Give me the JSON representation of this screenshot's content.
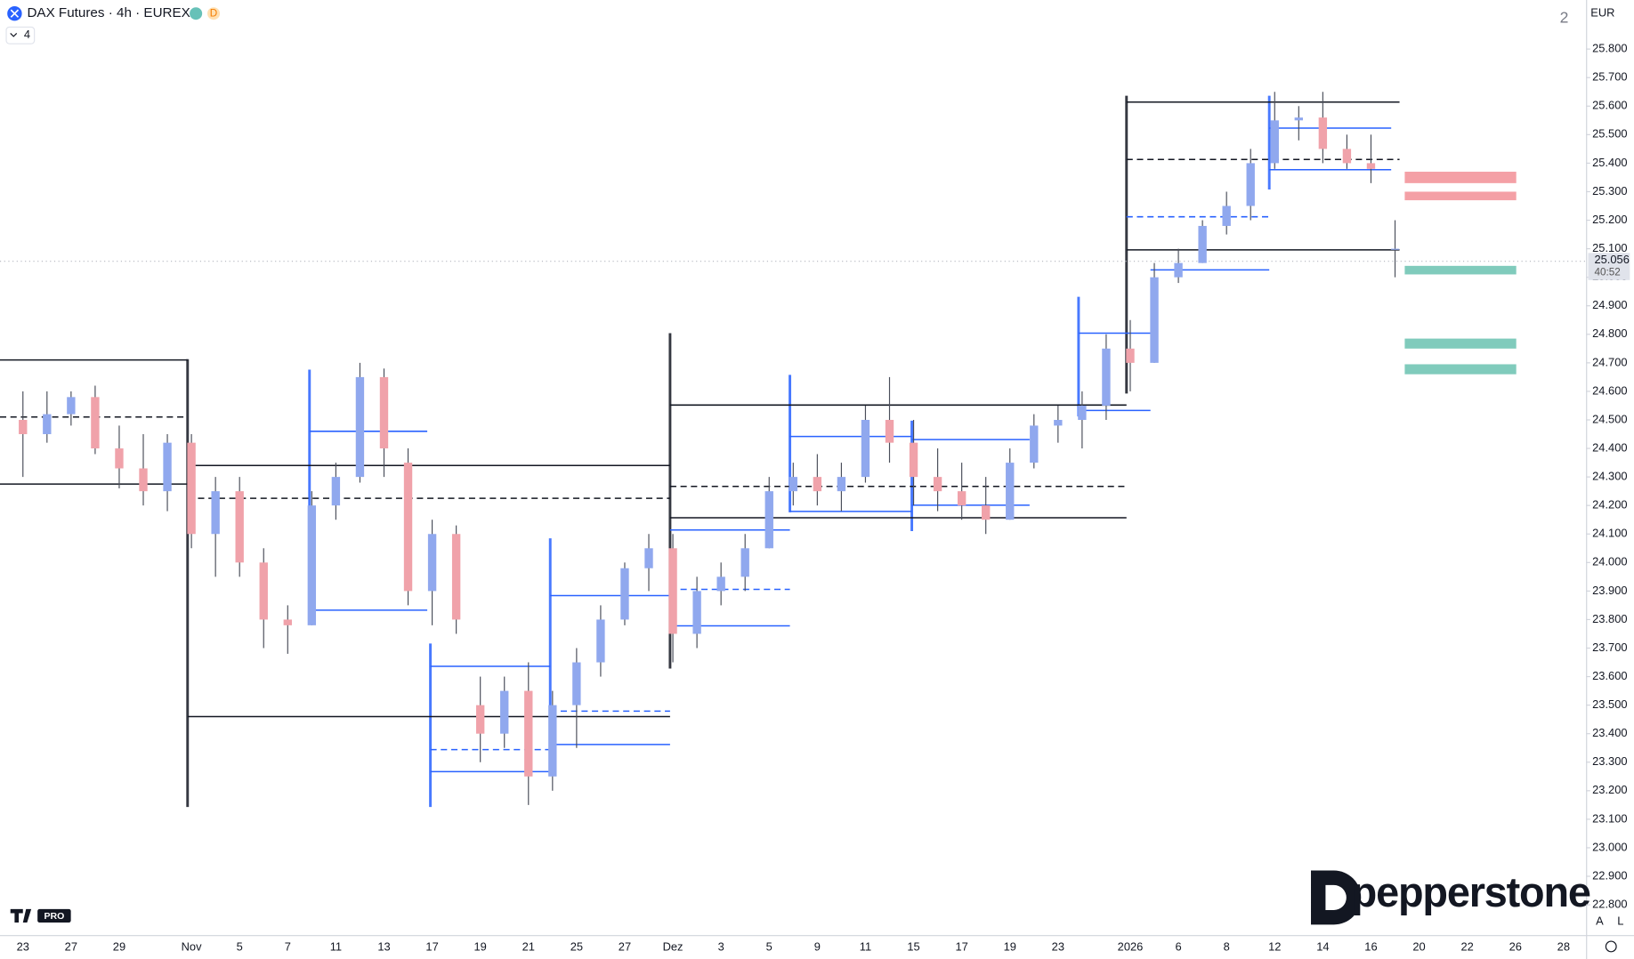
{
  "chart_data": {
    "type": "candlestick",
    "title": "DAX Futures · 4h · EUREX",
    "badge": "D",
    "indicator_count": "4",
    "layout_count": "2",
    "currency": "EUR",
    "scale_buttons": [
      "A",
      "L"
    ],
    "watermark": "PRO",
    "brand": "pepperstone",
    "categories": [
      "23",
      null,
      "27",
      null,
      "29",
      null,
      null,
      "Nov",
      null,
      "5",
      null,
      "7",
      null,
      "11",
      null,
      "13",
      null,
      "17",
      null,
      "19",
      null,
      "21",
      null,
      "25",
      null,
      "27",
      null,
      "Dez",
      null,
      "3",
      null,
      "5",
      null,
      "9",
      null,
      "11",
      null,
      "15",
      null,
      "17",
      null,
      "19",
      null,
      "23",
      null,
      null,
      "2026",
      null,
      "6",
      null,
      "8",
      null,
      "12",
      null,
      "14",
      null,
      "16",
      null,
      "20",
      null,
      "22",
      null,
      "26",
      null,
      "28"
    ],
    "open": [
      24500,
      24450,
      24520,
      24580,
      24400,
      24330,
      24250,
      24420,
      24100,
      24250,
      24000,
      23800,
      23780,
      24200,
      24300,
      24650,
      24350,
      23900,
      24100,
      23500,
      23400,
      23550,
      23250,
      23500,
      23650,
      23800,
      23980,
      24050,
      23750,
      23900,
      23950,
      24050,
      24250,
      24300,
      24250,
      24300,
      24500,
      24420,
      24300,
      24250,
      24200,
      24150,
      24350,
      24480,
      24500,
      24550,
      24750,
      24700,
      25000,
      25050,
      25180,
      25250,
      25400,
      25550,
      25560,
      25450,
      25400,
      25100,
      null,
      null,
      null,
      null,
      null,
      null,
      null
    ],
    "high": [
      24600,
      24600,
      24600,
      24620,
      24480,
      24450,
      24450,
      24450,
      24300,
      24300,
      24050,
      23850,
      24250,
      24350,
      24700,
      24680,
      24400,
      24150,
      24130,
      23600,
      23600,
      23650,
      23550,
      23700,
      23850,
      24000,
      24100,
      24100,
      23950,
      24000,
      24100,
      24300,
      24350,
      24380,
      24350,
      24550,
      24650,
      24500,
      24400,
      24350,
      24300,
      24400,
      24520,
      24550,
      24600,
      24800,
      24850,
      25050,
      25100,
      25200,
      25300,
      25450,
      25650,
      25600,
      25650,
      25500,
      25500,
      25200,
      null,
      null,
      null,
      null,
      null,
      null,
      null
    ],
    "low": [
      24300,
      24420,
      24480,
      24380,
      24260,
      24200,
      24180,
      24050,
      23950,
      23950,
      23700,
      23680,
      23780,
      24150,
      24280,
      24300,
      23850,
      23780,
      23750,
      23300,
      23350,
      23150,
      23200,
      23350,
      23600,
      23780,
      23900,
      23650,
      23700,
      23850,
      23900,
      24050,
      24200,
      24200,
      24180,
      24280,
      24350,
      24200,
      24180,
      24150,
      24100,
      24150,
      24330,
      24420,
      24400,
      24500,
      24600,
      24700,
      24980,
      25050,
      25150,
      25200,
      25380,
      25480,
      25400,
      25380,
      25330,
      25000,
      null,
      null,
      null,
      null,
      null,
      null,
      null
    ],
    "close": [
      24450,
      24520,
      24580,
      24400,
      24330,
      24250,
      24420,
      24100,
      24250,
      24000,
      23800,
      23780,
      24200,
      24300,
      24650,
      24400,
      23900,
      24100,
      23800,
      23400,
      23550,
      23250,
      23500,
      23650,
      23800,
      23980,
      24050,
      23750,
      23900,
      23950,
      24050,
      24250,
      24300,
      24250,
      24300,
      24500,
      24420,
      24300,
      24250,
      24200,
      24150,
      24350,
      24480,
      24500,
      24550,
      24750,
      24700,
      25000,
      25050,
      25180,
      25250,
      25400,
      25550,
      25560,
      25450,
      25400,
      25380,
      25100,
      null,
      null,
      null,
      null,
      null,
      null,
      null
    ],
    "up_color": "#90a8ee",
    "down_color": "#f0a2aa",
    "wick_color": "#4a4e5a",
    "last_price": {
      "value": 25056,
      "label": "25.056"
    },
    "countdown": "40:52",
    "ylim": [
      22694,
      25972
    ],
    "yticks": [
      {
        "value": 22800,
        "label": "22.800"
      },
      {
        "value": 22900,
        "label": "22.900"
      },
      {
        "value": 23000,
        "label": "23.000"
      },
      {
        "value": 23100,
        "label": "23.100"
      },
      {
        "value": 23200,
        "label": "23.200"
      },
      {
        "value": 23300,
        "label": "23.300"
      },
      {
        "value": 23400,
        "label": "23.400"
      },
      {
        "value": 23500,
        "label": "23.500"
      },
      {
        "value": 23600,
        "label": "23.600"
      },
      {
        "value": 23700,
        "label": "23.700"
      },
      {
        "value": 23800,
        "label": "23.800"
      },
      {
        "value": 23900,
        "label": "23.900"
      },
      {
        "value": 24000,
        "label": "24.000"
      },
      {
        "value": 24100,
        "label": "24.100"
      },
      {
        "value": 24200,
        "label": "24.200"
      },
      {
        "value": 24300,
        "label": "24.300"
      },
      {
        "value": 24400,
        "label": "24.400"
      },
      {
        "value": 24500,
        "label": "24.500"
      },
      {
        "value": 24600,
        "label": "24.600"
      },
      {
        "value": 24700,
        "label": "24.700"
      },
      {
        "value": 24800,
        "label": "24.800"
      },
      {
        "value": 24900,
        "label": "24.900"
      },
      {
        "value": 25000,
        "label": "25.000"
      },
      {
        "value": 25100,
        "label": "25.100"
      },
      {
        "value": 25200,
        "label": "25.200"
      },
      {
        "value": 25300,
        "label": "25.300"
      },
      {
        "value": 25400,
        "label": "25.400"
      },
      {
        "value": 25500,
        "label": "25.500"
      },
      {
        "value": 25600,
        "label": "25.600"
      },
      {
        "value": 25700,
        "label": "25.700"
      },
      {
        "value": 25800,
        "label": "25.800"
      }
    ],
    "grid": false,
    "levels": [
      {
        "value": 24710,
        "color": "#131722",
        "dashed": false
      },
      {
        "value": 24510,
        "color": "#131722",
        "dashed": true
      },
      {
        "value": 24275,
        "color": "#131722",
        "dashed": false
      },
      {
        "value": 24340,
        "color": "#131722",
        "dashed": false
      },
      {
        "value": 24225,
        "color": "#131722",
        "dashed": true
      },
      {
        "value": 23460,
        "color": "#131722",
        "dashed": false
      },
      {
        "value": 24460,
        "color": "#2962ff",
        "dashed": false
      },
      {
        "value": 23833,
        "color": "#2962ff",
        "dashed": false
      },
      {
        "value": 23636,
        "color": "#2962ff",
        "dashed": false
      },
      {
        "value": 23344,
        "color": "#2962ff",
        "dashed": true
      },
      {
        "value": 23267,
        "color": "#2962ff",
        "dashed": false
      },
      {
        "value": 23884,
        "color": "#2962ff",
        "dashed": false
      },
      {
        "value": 23479,
        "color": "#2962ff",
        "dashed": true
      },
      {
        "value": 23362,
        "color": "#2962ff",
        "dashed": false
      },
      {
        "value": 24552,
        "color": "#131722",
        "dashed": false
      },
      {
        "value": 24267,
        "color": "#131722",
        "dashed": true
      },
      {
        "value": 24157,
        "color": "#131722",
        "dashed": false
      },
      {
        "value": 24114,
        "color": "#2962ff",
        "dashed": false
      },
      {
        "value": 23906,
        "color": "#2962ff",
        "dashed": true
      },
      {
        "value": 23778,
        "color": "#2962ff",
        "dashed": false
      },
      {
        "value": 24442,
        "color": "#2962ff",
        "dashed": false
      },
      {
        "value": 24179,
        "color": "#2962ff",
        "dashed": false
      },
      {
        "value": 24431,
        "color": "#2962ff",
        "dashed": false
      },
      {
        "value": 24201,
        "color": "#2962ff",
        "dashed": false
      },
      {
        "value": 24804,
        "color": "#2962ff",
        "dashed": false
      },
      {
        "value": 24533,
        "color": "#2962ff",
        "dashed": false
      },
      {
        "value": 25614,
        "color": "#131722",
        "dashed": false
      },
      {
        "value": 25413,
        "color": "#131722",
        "dashed": true
      },
      {
        "value": 25096,
        "color": "#131722",
        "dashed": false
      },
      {
        "value": 25212,
        "color": "#2962ff",
        "dashed": true
      },
      {
        "value": 25026,
        "color": "#2962ff",
        "dashed": false
      },
      {
        "value": 25523,
        "color": "#2962ff",
        "dashed": false
      },
      {
        "value": 25377,
        "color": "#2962ff",
        "dashed": false
      }
    ],
    "zones": [
      {
        "low": 25330,
        "high": 25370,
        "color": "#f4a0a6"
      },
      {
        "low": 25270,
        "high": 25300,
        "color": "#f4a0a6"
      },
      {
        "low": 25010,
        "high": 25040,
        "color": "#80cbbc"
      },
      {
        "low": 24750,
        "high": 24785,
        "color": "#80cbbc"
      },
      {
        "low": 24660,
        "high": 24695,
        "color": "#80cbbc"
      }
    ]
  }
}
